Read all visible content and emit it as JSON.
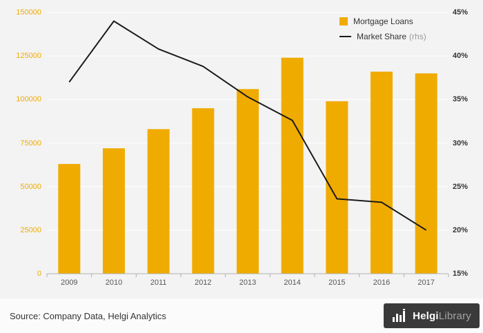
{
  "chart_data": {
    "type": "bar",
    "categories": [
      "2009",
      "2010",
      "2011",
      "2012",
      "2013",
      "2014",
      "2015",
      "2016",
      "2017"
    ],
    "series": [
      {
        "name": "Mortgage Loans",
        "type": "bar",
        "axis": "left",
        "color": "#F0AB00",
        "values": [
          63000,
          72000,
          83000,
          95000,
          106000,
          124000,
          99000,
          116000,
          115000
        ]
      },
      {
        "name": "Market Share",
        "type": "line",
        "axis": "right",
        "color": "#1a1a1a",
        "values": [
          37,
          44,
          40.8,
          38.8,
          35.3,
          32.6,
          23.6,
          23.2,
          20
        ]
      }
    ],
    "left_axis": {
      "min": 0,
      "max": 150000,
      "tick_values": [
        0,
        25000,
        50000,
        75000,
        100000,
        125000,
        150000
      ],
      "ticks": [
        "0",
        "25000",
        "50000",
        "75000",
        "100000",
        "125000",
        "150000"
      ],
      "color": "#F0AB00"
    },
    "right_axis": {
      "min": 15,
      "max": 45,
      "tick_values": [
        15,
        20,
        25,
        30,
        35,
        40,
        45
      ],
      "ticks": [
        "15%",
        "20%",
        "25%",
        "30%",
        "35%",
        "40%",
        "45%"
      ],
      "color": "#333333"
    },
    "legend": [
      {
        "label": "Mortgage Loans",
        "swatch": "square",
        "color": "#F0AB00"
      },
      {
        "label": "Market Share",
        "suffix": "(rhs)",
        "swatch": "line",
        "color": "#1a1a1a"
      }
    ],
    "grid": true,
    "grid_color": "#ffffff",
    "axis_line_color": "#b0b0b0",
    "background": "#f3f3f3"
  },
  "footer": {
    "source": "Source: Company Data, Helgi Analytics"
  },
  "logo": {
    "brand_bold": "Helgi",
    "brand_light": "Library",
    "icon": "bar-chart-logo"
  }
}
